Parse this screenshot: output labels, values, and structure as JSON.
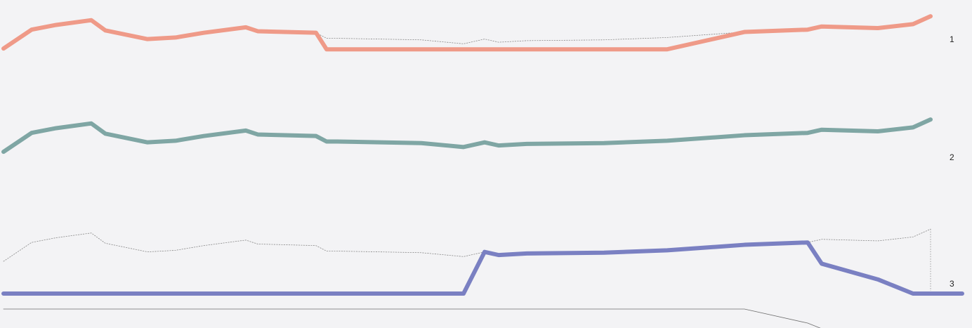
{
  "colors": {
    "background": "#f3f3f5",
    "series_1": "#ef9a88",
    "series_2": "#7fa6a4",
    "series_3": "#7a80c2",
    "ghost": "#8a8a8a",
    "baseline": "#6e6e6e"
  },
  "chart_data": {
    "type": "line",
    "title": "",
    "xlabel": "",
    "ylabel": "",
    "grid": false,
    "x": [
      0,
      1,
      2,
      3,
      4,
      5,
      6,
      7,
      8,
      9,
      10,
      11,
      12,
      13,
      14,
      15,
      16,
      17,
      18,
      19,
      20,
      21,
      22,
      23,
      24,
      25
    ],
    "reference": [
      41,
      65,
      71,
      77,
      64,
      53,
      55,
      61,
      68,
      63,
      61,
      54,
      54,
      52,
      47,
      53,
      49,
      51,
      52,
      55,
      62,
      65,
      69,
      67,
      72,
      82
    ],
    "series": [
      {
        "name": "1",
        "values": [
          41,
          65,
          71,
          77,
          64,
          53,
          55,
          61,
          68,
          63,
          61,
          40,
          40,
          40,
          40,
          40,
          40,
          40,
          40,
          40,
          62,
          65,
          69,
          67,
          72,
          82
        ]
      },
      {
        "name": "2",
        "values": [
          41,
          65,
          71,
          77,
          64,
          53,
          55,
          61,
          68,
          63,
          61,
          54,
          54,
          52,
          47,
          53,
          49,
          51,
          52,
          55,
          62,
          65,
          69,
          67,
          72,
          82
        ]
      },
      {
        "name": "3",
        "values": [
          0,
          0,
          0,
          0,
          0,
          0,
          0,
          0,
          0,
          0,
          0,
          0,
          0,
          0,
          0,
          53,
          49,
          51,
          52,
          55,
          62,
          65,
          38,
          18,
          0,
          0
        ]
      }
    ],
    "bottom_line": [
      0,
      0,
      0,
      0,
      0,
      0,
      0,
      0,
      0,
      0,
      0,
      0,
      0,
      0,
      0,
      0,
      0,
      0,
      0,
      0,
      0,
      -20,
      -28,
      -30,
      -30,
      -30
    ]
  }
}
